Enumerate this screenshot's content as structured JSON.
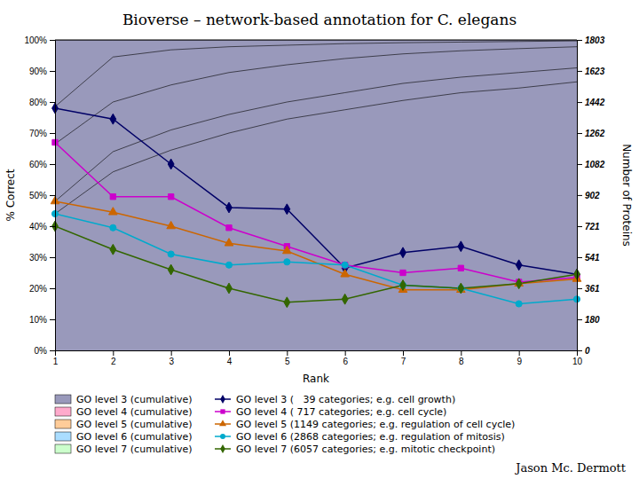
{
  "chart_data": {
    "type": "line",
    "title": "Bioverse – network-based annotation for C. elegans",
    "xlabel": "Rank",
    "ylabel": "% Correct",
    "y2label": "Number of Proteins",
    "x": [
      1,
      2,
      3,
      4,
      5,
      6,
      7,
      8,
      9,
      10
    ],
    "xlim": [
      1,
      10
    ],
    "xticks": [
      1,
      2,
      3,
      4,
      5,
      6,
      7,
      8,
      9,
      10
    ],
    "ylim": [
      0,
      1.0
    ],
    "yticks": [
      {
        "value": 0,
        "label": "0%"
      },
      {
        "value": 0.1,
        "label": "10%"
      },
      {
        "value": 0.2,
        "label": "20%"
      },
      {
        "value": 0.3,
        "label": "30%"
      },
      {
        "value": 0.4,
        "label": "40%"
      },
      {
        "value": 0.5,
        "label": "50%"
      },
      {
        "value": 0.6,
        "label": "60%"
      },
      {
        "value": 0.7,
        "label": "70%"
      },
      {
        "value": 0.8,
        "label": "80%"
      },
      {
        "value": 0.9,
        "label": "90%"
      },
      {
        "value": 1.0,
        "label": "100%"
      }
    ],
    "y2lim": [
      0,
      1803
    ],
    "y2ticks": [
      0,
      180,
      361,
      541,
      721,
      902,
      1082,
      1262,
      1442,
      1623,
      1803
    ],
    "grid": false,
    "legend": "bottom",
    "series": [
      {
        "name": "GO level 3 (cumulative)",
        "type": "area",
        "color": "#9999bb",
        "values": [
          1.0,
          1.0,
          1.0,
          1.0,
          1.0,
          1.0,
          1.0,
          1.0,
          1.0,
          1.0
        ]
      },
      {
        "name": "GO level 4 (cumulative)",
        "type": "area",
        "color": "#ffaacc",
        "values": [
          0.785,
          0.945,
          0.968,
          0.978,
          0.983,
          0.988,
          0.991,
          0.993,
          0.995,
          0.997
        ]
      },
      {
        "name": "GO level 5 (cumulative)",
        "type": "area",
        "color": "#ffcc99",
        "values": [
          0.665,
          0.8,
          0.855,
          0.895,
          0.92,
          0.94,
          0.955,
          0.965,
          0.972,
          0.978
        ]
      },
      {
        "name": "GO level 6 (cumulative)",
        "type": "area",
        "color": "#aaddff",
        "values": [
          0.48,
          0.64,
          0.71,
          0.76,
          0.8,
          0.83,
          0.86,
          0.88,
          0.895,
          0.91
        ]
      },
      {
        "name": "GO level 7 (cumulative)",
        "type": "area",
        "color": "#ccffcc",
        "values": [
          0.44,
          0.575,
          0.645,
          0.7,
          0.745,
          0.775,
          0.805,
          0.83,
          0.845,
          0.865
        ]
      },
      {
        "name": "GO level 3 (   39 categories; e.g. cell growth)",
        "type": "line",
        "color": "#000066",
        "marker": "diamond",
        "values": [
          0.78,
          0.745,
          0.6,
          0.46,
          0.455,
          0.265,
          0.315,
          0.335,
          0.275,
          0.245
        ]
      },
      {
        "name": "GO level 4 ( 717 categories; e.g. cell cycle)",
        "type": "line",
        "color": "#cc00cc",
        "marker": "square",
        "values": [
          0.67,
          0.495,
          0.495,
          0.395,
          0.335,
          0.275,
          0.25,
          0.265,
          0.22,
          0.235
        ]
      },
      {
        "name": "GO level 5 (1149 categories; e.g. regulation of cell cycle)",
        "type": "line",
        "color": "#cc6600",
        "marker": "triangle",
        "values": [
          0.48,
          0.445,
          0.4,
          0.345,
          0.32,
          0.245,
          0.195,
          0.195,
          0.215,
          0.23
        ]
      },
      {
        "name": "GO level 6 (2868 categories; e.g. regulation of mitosis)",
        "type": "line",
        "color": "#00aacc",
        "marker": "circle",
        "values": [
          0.44,
          0.395,
          0.31,
          0.275,
          0.285,
          0.275,
          0.21,
          0.2,
          0.15,
          0.165
        ]
      },
      {
        "name": "GO level 7 (6057 categories; e.g. mitotic checkpoint)",
        "type": "line",
        "color": "#336600",
        "marker": "diamond",
        "values": [
          0.4,
          0.325,
          0.26,
          0.2,
          0.155,
          0.165,
          0.21,
          0.2,
          0.215,
          0.245
        ]
      }
    ],
    "annotations": [
      "Jason Mc. Dermott"
    ]
  }
}
